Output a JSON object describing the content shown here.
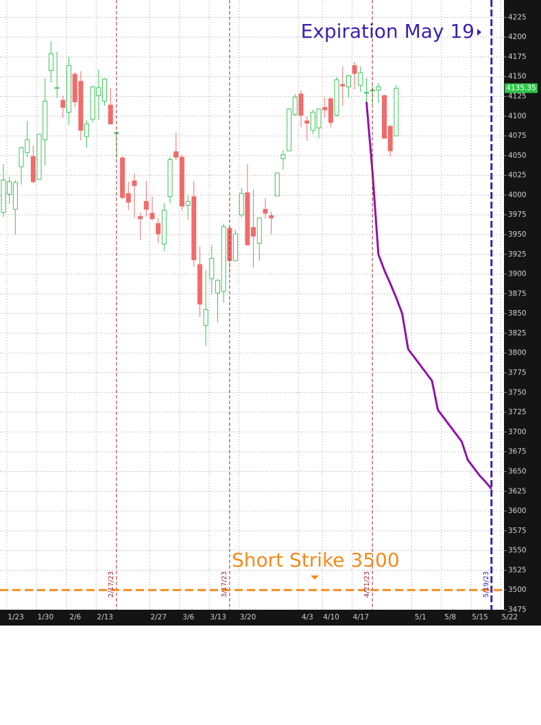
{
  "chart_data": {
    "type": "candlestick",
    "categories": [
      "1/23",
      null,
      null,
      null,
      null,
      "1/30",
      null,
      null,
      null,
      null,
      "2/6",
      null,
      null,
      null,
      null,
      "2/13",
      null,
      null,
      null,
      null,
      null,
      null,
      null,
      null,
      "2/27",
      null,
      null,
      null,
      null,
      "3/6",
      null,
      null,
      null,
      null,
      "3/13",
      null,
      null,
      null,
      null,
      "3/20",
      null,
      null,
      null,
      null,
      null,
      null,
      null,
      null,
      null,
      "4/3",
      null,
      null,
      null,
      "4/10",
      null,
      null,
      null,
      null,
      "4/17",
      null,
      null,
      null,
      null,
      null,
      null,
      null,
      null,
      null,
      "5/1",
      null,
      null,
      null,
      null,
      "5/8",
      null,
      null,
      null,
      null,
      "5/15",
      null,
      null,
      null,
      null,
      "5/22"
    ],
    "open": [
      3978,
      4001,
      3982,
      4036,
      4054,
      4049,
      4020,
      4070,
      4158,
      4136,
      4120,
      4105,
      4153,
      4144,
      4074,
      4096,
      4126,
      4119,
      4114,
      4078,
      4047,
      4002,
      4018,
      3973,
      3992,
      3977,
      3964,
      3938,
      3998,
      4055,
      4048,
      3987,
      3998,
      3912,
      3835,
      3894,
      3876,
      3878,
      3958,
      3917,
      3975,
      4003,
      3959,
      3939,
      3982,
      3974,
      3999,
      4046,
      4056,
      4102,
      4128,
      4094,
      4082,
      4085,
      4111,
      4122,
      4101,
      4140,
      4137,
      4164,
      4139,
      4130,
      4132,
      4133,
      4126,
      4087,
      4075,
      null,
      null,
      null,
      null,
      null,
      null,
      null,
      null,
      null,
      null,
      null,
      null,
      null,
      null,
      null,
      null,
      null
    ],
    "high": [
      4039,
      4023,
      4019,
      4061,
      4094,
      4063,
      4077,
      4148,
      4195,
      4182,
      4126,
      4176,
      4156,
      4157,
      4095,
      4138,
      4159,
      4148,
      4136,
      4081,
      4049,
      4017,
      4028,
      3978,
      4018,
      3998,
      3971,
      3990,
      4048,
      4079,
      4051,
      4000,
      4018,
      3935,
      3905,
      3937,
      3894,
      3964,
      3959,
      3956,
      4009,
      4039,
      4007,
      3972,
      3996,
      3979,
      4027,
      4057,
      4110,
      4128,
      4133,
      4100,
      4108,
      4110,
      4124,
      4124,
      4150,
      4163,
      4152,
      4169,
      4163,
      4148,
      4138,
      4142,
      4127,
      4089,
      4139,
      null,
      null,
      null,
      null,
      null,
      null,
      null,
      null,
      null,
      null,
      null,
      null,
      null,
      null,
      null,
      null,
      null
    ],
    "low": [
      3972,
      3989,
      3950,
      4013,
      4048,
      4015,
      4020,
      4037,
      4142,
      4123,
      4098,
      4089,
      4111,
      4069,
      4060,
      4092,
      4095,
      4113,
      4091,
      4047,
      3995,
      3981,
      3971,
      3943,
      3973,
      3968,
      3939,
      3929,
      3990,
      4044,
      3980,
      3969,
      3909,
      3846,
      3809,
      3874,
      3839,
      3864,
      3901,
      3916,
      3971,
      3936,
      3908,
      3917,
      3970,
      3951,
      3999,
      4032,
      4056,
      4100,
      4086,
      4069,
      4077,
      4072,
      4098,
      4086,
      4099,
      4113,
      4123,
      4134,
      4131,
      4114,
      4114,
      4117,
      4072,
      4049,
      4075,
      null,
      null,
      null,
      null,
      null,
      null,
      null,
      null,
      null,
      null,
      null,
      null,
      null,
      null,
      null,
      null,
      null
    ],
    "close": [
      4019,
      4017,
      4016,
      4060,
      4070,
      4017,
      4077,
      4119,
      4179,
      4136,
      4111,
      4164,
      4118,
      4082,
      4090,
      4137,
      4136,
      4147,
      4090,
      4079,
      3997,
      3991,
      4012,
      3970,
      3982,
      3970,
      3951,
      3981,
      4045,
      4048,
      3986,
      3992,
      3918,
      3862,
      3855,
      3920,
      3892,
      3960,
      3917,
      3951,
      4002,
      3937,
      3948,
      3971,
      3977,
      3971,
      4028,
      4051,
      4109,
      4124,
      4101,
      4091,
      4105,
      4109,
      4108,
      4092,
      4146,
      4138,
      4151,
      4154,
      4155,
      4130,
      4133,
      4137,
      4072,
      4056,
      4135,
      null,
      null,
      null,
      null,
      null,
      null,
      null,
      null,
      null,
      null,
      null,
      null,
      null,
      null,
      null,
      null,
      null
    ],
    "up_color": "#39c357",
    "down_color": "#f26b6b",
    "forecast": {
      "color": "#8e12a8",
      "values": [
        null,
        null,
        null,
        null,
        null,
        null,
        null,
        null,
        null,
        null,
        null,
        null,
        null,
        null,
        null,
        null,
        null,
        null,
        null,
        null,
        null,
        null,
        null,
        null,
        null,
        null,
        null,
        null,
        null,
        null,
        null,
        null,
        null,
        null,
        null,
        null,
        null,
        null,
        null,
        null,
        null,
        null,
        null,
        null,
        null,
        null,
        null,
        null,
        null,
        null,
        null,
        null,
        null,
        null,
        null,
        null,
        null,
        null,
        null,
        null,
        null,
        4118,
        4030,
        3925,
        3905,
        3888,
        3870,
        3850,
        3805,
        3795,
        3785,
        3775,
        3765,
        3728,
        3718,
        3708,
        3698,
        3688,
        3665,
        3655,
        3645,
        3637,
        3628,
        null
      ]
    },
    "ylim": [
      3475,
      4247
    ],
    "yticks": [
      3475,
      3500,
      3525,
      3550,
      3575,
      3600,
      3625,
      3650,
      3675,
      3700,
      3725,
      3750,
      3775,
      3800,
      3825,
      3850,
      3875,
      3900,
      3925,
      3950,
      3975,
      4000,
      4025,
      4050,
      4075,
      4100,
      4125,
      4150,
      4175,
      4200,
      4225
    ],
    "grid": true,
    "last_price": 4135.35,
    "markers": [
      {
        "index": 19,
        "label": "2/17/23",
        "color": "#9b2a2a"
      },
      {
        "index": 38,
        "label": "3/17/23",
        "color": "#9b2a2a"
      },
      {
        "index": 62,
        "label": "4/21/23",
        "color": "#9b2a2a"
      },
      {
        "index": 82,
        "label": "5/19/23",
        "color": "#3a1fb0"
      }
    ],
    "hline": {
      "value": 3500,
      "color": "#f28a1e"
    },
    "annotations": {
      "expiration": "Expiration May 19",
      "short_strike": "Short Strike 3500"
    }
  }
}
